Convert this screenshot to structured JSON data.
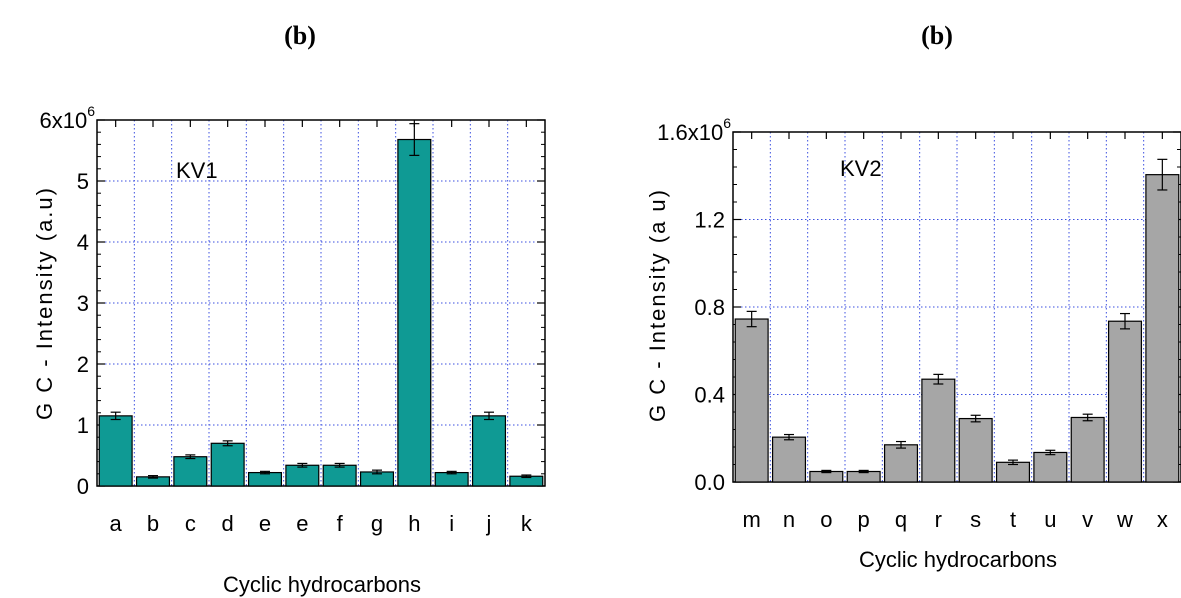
{
  "chart_data": [
    {
      "type": "bar",
      "panel_label": "(b)",
      "title": "KV1",
      "xlabel": "Cyclic hydrocarbons",
      "ylabel": "G C - Intensity  (a.u)",
      "ylim": [
        0,
        6000000
      ],
      "yticks": [
        {
          "value": 0,
          "label": "0"
        },
        {
          "value": 1000000,
          "label": "1"
        },
        {
          "value": 2000000,
          "label": "2"
        },
        {
          "value": 3000000,
          "label": "3"
        },
        {
          "value": 4000000,
          "label": "4"
        },
        {
          "value": 5000000,
          "label": "5"
        },
        {
          "value": 6000000,
          "label": "6x10",
          "exp": "6"
        }
      ],
      "categories": [
        "a",
        "b",
        "c",
        "d",
        "e",
        "e",
        "f",
        "g",
        "h",
        "i",
        "j",
        "k"
      ],
      "values": [
        1150000,
        150000,
        480000,
        700000,
        220000,
        340000,
        340000,
        230000,
        5680000,
        220000,
        1150000,
        160000
      ],
      "errors": [
        60000,
        20000,
        30000,
        40000,
        20000,
        30000,
        30000,
        30000,
        260000,
        20000,
        60000,
        20000
      ],
      "bar_color": "#0f9a94",
      "grid": true
    },
    {
      "type": "bar",
      "panel_label": "(b)",
      "title": "KV2",
      "xlabel": "Cyclic hydrocarbons",
      "ylabel": "G C - Intensity  (a u)",
      "ylim": [
        0,
        1600000
      ],
      "yticks": [
        {
          "value": 0,
          "label": "0.0"
        },
        {
          "value": 400000,
          "label": "0.4"
        },
        {
          "value": 800000,
          "label": "0.8"
        },
        {
          "value": 1200000,
          "label": "1.2"
        },
        {
          "value": 1600000,
          "label": "1.6x10",
          "exp": "6"
        }
      ],
      "categories": [
        "m",
        "n",
        "o",
        "p",
        "q",
        "r",
        "s",
        "t",
        "u",
        "v",
        "w",
        "x"
      ],
      "values": [
        745000,
        205000,
        48000,
        48000,
        170000,
        470000,
        290000,
        90000,
        135000,
        295000,
        735000,
        1405000
      ],
      "errors": [
        35000,
        12000,
        5000,
        5000,
        15000,
        22000,
        15000,
        10000,
        10000,
        15000,
        35000,
        70000
      ],
      "bar_color": "#a6a6a6",
      "grid": true
    }
  ]
}
